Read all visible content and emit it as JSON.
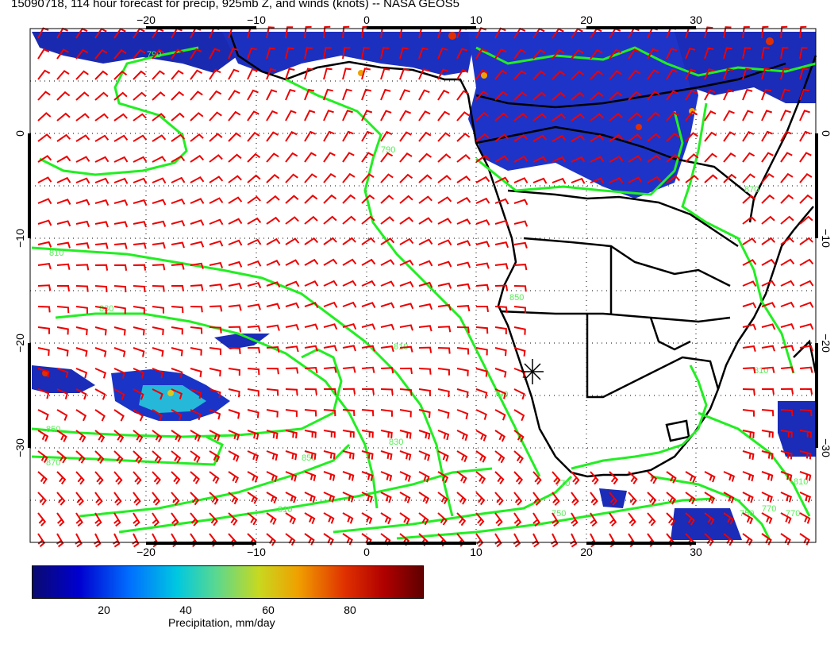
{
  "title": "15090718, 114 hour forecast for precip, 925mb Z, and winds (knots) -- NASA GEOS5",
  "map": {
    "lon_ticks": [
      "−20",
      "−10",
      "0",
      "10",
      "20",
      "30"
    ],
    "lat_ticks": [
      "0",
      "−10",
      "−20",
      "−30"
    ],
    "contour_labels": [
      "790",
      "790",
      "810",
      "830",
      "810",
      "850",
      "870",
      "850",
      "830",
      "810",
      "790",
      "810",
      "770",
      "750",
      "770",
      "750",
      "770",
      "810",
      "850",
      "870"
    ],
    "colors": {
      "wind_barbs": "#ee0000",
      "contours": "#22ee22",
      "coastline": "#000000",
      "precip_low": "#0a0a80",
      "precip_high": "#b00000"
    }
  },
  "colorbar": {
    "ticks": [
      "20",
      "40",
      "60",
      "80"
    ],
    "label": "Precipitation, mm/day"
  }
}
